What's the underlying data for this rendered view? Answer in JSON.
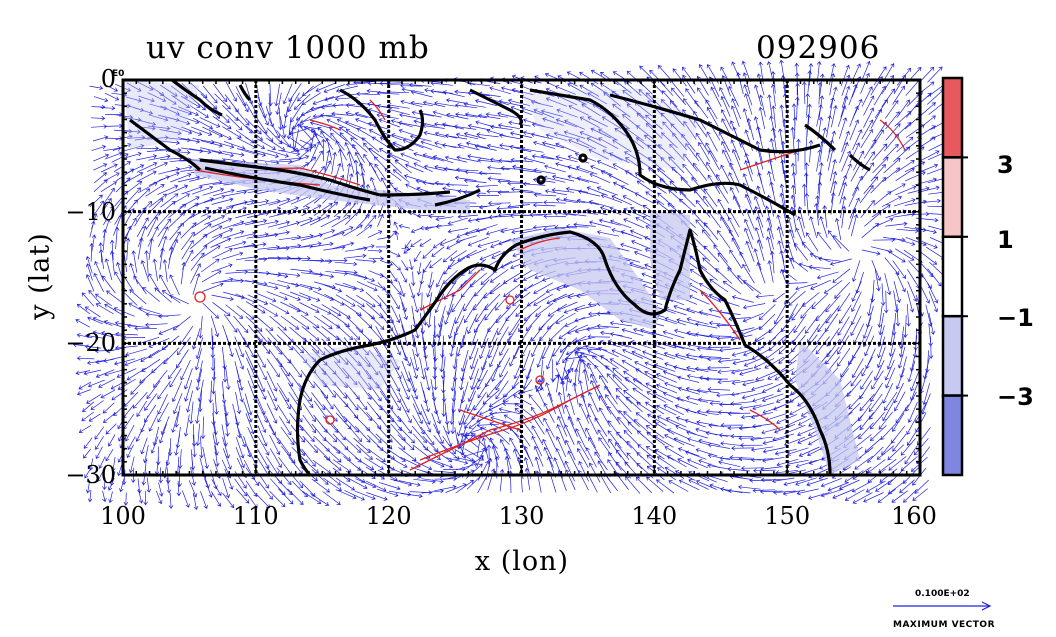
{
  "chart_data": {
    "type": "vector-contour-map",
    "title": "uv conv 1000 mb",
    "timestamp": "092906",
    "xlabel": "x (lon)",
    "ylabel": "y (lat)",
    "xlim": [
      100,
      160
    ],
    "ylim": [
      -30,
      0
    ],
    "x_ticks": [
      "100",
      "110",
      "120",
      "130",
      "140",
      "150",
      "160"
    ],
    "y_ticks": [
      "0",
      "−10",
      "−20",
      "−30"
    ],
    "y_tick_values": [
      0,
      -10,
      -20,
      -30
    ],
    "x_tick_values": [
      100,
      110,
      120,
      130,
      140,
      150,
      160
    ],
    "top_label_suffix": "E0",
    "grid": true,
    "colorbar": {
      "ticks": [
        "3",
        "1",
        "−1",
        "−3"
      ],
      "tick_values": [
        3,
        1,
        -1,
        -3
      ],
      "bands": [
        {
          "from": 3,
          "to": 5,
          "color": "#e8595d"
        },
        {
          "from": 1,
          "to": 3,
          "color": "#f7c5c6"
        },
        {
          "from": -1,
          "to": 1,
          "color": "#ffffff"
        },
        {
          "from": -3,
          "to": -1,
          "color": "#c6c9f0"
        },
        {
          "from": -5,
          "to": -3,
          "color": "#7f86e0"
        }
      ]
    },
    "reference_vector": {
      "magnitude": "0.100E+02",
      "label": "MAXIMUM VECTOR"
    },
    "colors": {
      "vector": "#2020e0",
      "positive_contour": "#e02020",
      "negative_fill": "#c6c9f0",
      "coast": "#000000"
    }
  }
}
